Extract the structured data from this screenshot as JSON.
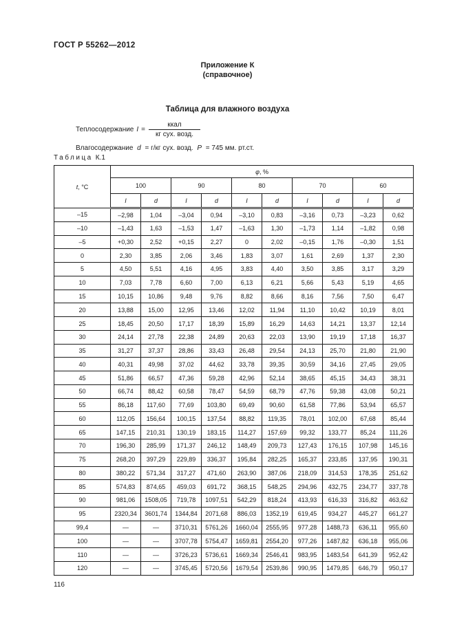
{
  "header": {
    "doc_code": "ГОСТ Р 55262—2012",
    "appendix_label": "Приложение К",
    "appendix_note": "(справочное)"
  },
  "title": "Таблица для влажного воздуха",
  "intro": {
    "heat_label": "Теплосодержание",
    "heat_var": "I",
    "heat_eq": "=",
    "frac_num": "ккал",
    "frac_den": "кг сух. возд.",
    "moisture_label": "Влагосодержание",
    "moisture_var": "d",
    "moisture_eq": "= г/кг сух. возд.",
    "pressure_var": "P",
    "pressure_eq": "= 745 мм. рт.ст."
  },
  "table_caption": {
    "word": "Таблица",
    "number": "К.1"
  },
  "table": {
    "t_var": "t",
    "t_unit": ", °С",
    "phi_var": "φ",
    "phi_unit": ", %",
    "groups": [
      "100",
      "90",
      "80",
      "70",
      "60"
    ],
    "subcols": [
      "I",
      "d"
    ],
    "rows": [
      [
        "–15",
        "–2,98",
        "1,04",
        "–3,04",
        "0,94",
        "–3,10",
        "0,83",
        "–3,16",
        "0,73",
        "–3,23",
        "0,62"
      ],
      [
        "–10",
        "–1,43",
        "1,63",
        "–1,53",
        "1,47",
        "–1,63",
        "1,30",
        "–1,73",
        "1,14",
        "–1,82",
        "0,98"
      ],
      [
        "–5",
        "+0,30",
        "2,52",
        "+0,15",
        "2,27",
        "0",
        "2,02",
        "–0,15",
        "1,76",
        "–0,30",
        "1,51"
      ],
      [
        "0",
        "2,30",
        "3,85",
        "2,06",
        "3,46",
        "1,83",
        "3,07",
        "1,61",
        "2,69",
        "1,37",
        "2,30"
      ],
      [
        "5",
        "4,50",
        "5,51",
        "4,16",
        "4,95",
        "3,83",
        "4,40",
        "3,50",
        "3,85",
        "3,17",
        "3,29"
      ],
      [
        "10",
        "7,03",
        "7,78",
        "6,60",
        "7,00",
        "6,13",
        "6,21",
        "5,66",
        "5,43",
        "5,19",
        "4,65"
      ],
      [
        "15",
        "10,15",
        "10,86",
        "9,48",
        "9,76",
        "8,82",
        "8,66",
        "8,16",
        "7,56",
        "7,50",
        "6,47"
      ],
      [
        "20",
        "13,88",
        "15,00",
        "12,95",
        "13,46",
        "12,02",
        "11,94",
        "11,10",
        "10,42",
        "10,19",
        "8,01"
      ],
      [
        "25",
        "18,45",
        "20,50",
        "17,17",
        "18,39",
        "15,89",
        "16,29",
        "14,63",
        "14,21",
        "13,37",
        "12,14"
      ],
      [
        "30",
        "24,14",
        "27,78",
        "22,38",
        "24,89",
        "20,63",
        "22,03",
        "13,90",
        "19,19",
        "17,18",
        "16,37"
      ],
      [
        "35",
        "31,27",
        "37,37",
        "28,86",
        "33,43",
        "26,48",
        "29,54",
        "24,13",
        "25,70",
        "21,80",
        "21,90"
      ],
      [
        "40",
        "40,31",
        "49,98",
        "37,02",
        "44,62",
        "33,78",
        "39,35",
        "30,59",
        "34,16",
        "27,45",
        "29,05"
      ],
      [
        "45",
        "51,86",
        "66,57",
        "47,36",
        "59,28",
        "42,96",
        "52,14",
        "38,65",
        "45,15",
        "34,43",
        "38,31"
      ],
      [
        "50",
        "66,74",
        "88,42",
        "60,58",
        "78,47",
        "54,59",
        "68,79",
        "47,76",
        "59,38",
        "43,08",
        "50,21"
      ],
      [
        "55",
        "86,18",
        "117,60",
        "77,69",
        "103,80",
        "69,49",
        "90,60",
        "61,58",
        "77,86",
        "53,94",
        "65,57"
      ],
      [
        "60",
        "112,05",
        "156,64",
        "100,15",
        "137,54",
        "88,82",
        "119,35",
        "78,01",
        "102,00",
        "67,68",
        "85,44"
      ],
      [
        "65",
        "147,15",
        "210,31",
        "130,19",
        "183,15",
        "114,27",
        "157,69",
        "99,32",
        "133,77",
        "85,24",
        "111,26"
      ],
      [
        "70",
        "196,30",
        "285,99",
        "171,37",
        "246,12",
        "148,49",
        "209,73",
        "127,43",
        "176,15",
        "107,98",
        "145,16"
      ],
      [
        "75",
        "268,20",
        "397,29",
        "229,89",
        "336,37",
        "195,84",
        "282,25",
        "165,37",
        "233,85",
        "137,95",
        "190,31"
      ],
      [
        "80",
        "380,22",
        "571,34",
        "317,27",
        "471,60",
        "263,90",
        "387,06",
        "218,09",
        "314,53",
        "178,35",
        "251,62"
      ],
      [
        "85",
        "574,83",
        "874,65",
        "459,03",
        "691,72",
        "368,15",
        "548,25",
        "294,96",
        "432,75",
        "234,77",
        "337,78"
      ],
      [
        "90",
        "981,06",
        "1508,05",
        "719,78",
        "1097,51",
        "542,29",
        "818,24",
        "413,93",
        "616,33",
        "316,82",
        "463,62"
      ],
      [
        "95",
        "2320,34",
        "3601,74",
        "1344,84",
        "2071,68",
        "886,03",
        "1352,19",
        "619,45",
        "934,27",
        "445,27",
        "661,27"
      ],
      [
        "99,4",
        "—",
        "—",
        "3710,31",
        "5761,26",
        "1660,04",
        "2555,95",
        "977,28",
        "1488,73",
        "636,11",
        "955,60"
      ],
      [
        "100",
        "—",
        "—",
        "3707,78",
        "5754,47",
        "1659,81",
        "2554,20",
        "977,26",
        "1487,82",
        "636,18",
        "955,06"
      ],
      [
        "110",
        "—",
        "—",
        "3726,23",
        "5736,61",
        "1669,34",
        "2546,41",
        "983,95",
        "1483,54",
        "641,39",
        "952,42"
      ],
      [
        "120",
        "—",
        "—",
        "3745,45",
        "5720,56",
        "1679,54",
        "2539,86",
        "990,95",
        "1479,85",
        "646,79",
        "950,17"
      ]
    ]
  },
  "footer": {
    "page_number": "116"
  }
}
